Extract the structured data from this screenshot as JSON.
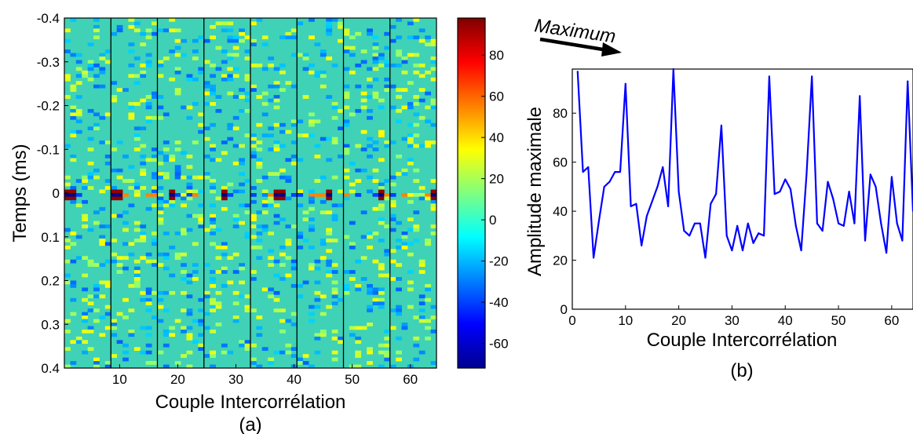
{
  "chart_data": [
    {
      "type": "heatmap",
      "panel_caption": "(a)",
      "xlabel": "Couple Intercorrélation",
      "ylabel": "Temps (ms)",
      "xlim": [
        0.5,
        64.5
      ],
      "ylim": [
        -0.4,
        0.4
      ],
      "y_reversed": true,
      "x_ticks": [
        10,
        20,
        30,
        40,
        50,
        60
      ],
      "x_tick_labels": [
        "10",
        "20",
        "30",
        "40",
        "50",
        "60"
      ],
      "y_ticks": [
        -0.4,
        -0.3,
        -0.2,
        -0.1,
        0,
        0.1,
        0.2,
        0.3,
        0.4
      ],
      "y_tick_labels": [
        "-0.4",
        "-0.3",
        "-0.2",
        "-0.1",
        "0",
        "0.1",
        "0.2",
        "0.3",
        "0.4"
      ],
      "group_separators_x": [
        8.5,
        16.5,
        24.5,
        32.5,
        40.5,
        48.5,
        56.5
      ],
      "colormap": "jet",
      "color_range": [
        -72,
        98
      ],
      "colorbar_ticks": [
        80,
        60,
        40,
        20,
        0,
        -20,
        -40,
        -60
      ],
      "colorbar_tick_labels": [
        "80",
        "60",
        "40",
        "20",
        "0",
        "-20",
        "-40",
        "-60"
      ],
      "n_couples": 64,
      "n_lags": 100,
      "peak_lag_ms": 0,
      "peak_couples": [
        1,
        2,
        9,
        10,
        19,
        28,
        37,
        38,
        46,
        55,
        64
      ]
    },
    {
      "type": "line",
      "panel_caption": "(b)",
      "annotation": "Maximum",
      "xlabel": "Couple Intercorrélation",
      "ylabel": "Amplitude maximale",
      "xlim": [
        0,
        64
      ],
      "ylim": [
        0,
        98
      ],
      "x_ticks": [
        0,
        10,
        20,
        30,
        40,
        50,
        60
      ],
      "x_tick_labels": [
        "0",
        "10",
        "20",
        "30",
        "40",
        "50",
        "60"
      ],
      "y_ticks": [
        0,
        20,
        40,
        60,
        80
      ],
      "y_tick_labels": [
        "0",
        "20",
        "40",
        "60",
        "80"
      ],
      "color": "#0000ff",
      "series": [
        {
          "x": [
            1,
            2,
            3,
            4,
            5,
            6,
            7,
            8,
            9,
            10,
            11,
            12,
            13,
            14,
            15,
            16,
            17,
            18,
            19,
            20,
            21,
            22,
            23,
            24,
            25,
            26,
            27,
            28,
            29,
            30,
            31,
            32,
            33,
            34,
            35,
            36,
            37,
            38,
            39,
            40,
            41,
            42,
            43,
            44,
            45,
            46,
            47,
            48,
            49,
            50,
            51,
            52,
            53,
            54,
            55,
            56,
            57,
            58,
            59,
            60,
            61,
            62,
            63,
            64
          ],
          "values": [
            97,
            56,
            58,
            21,
            36,
            50,
            52,
            56,
            56,
            92,
            42,
            43,
            26,
            38,
            44,
            50,
            58,
            42,
            98,
            48,
            32,
            30,
            35,
            35,
            21,
            43,
            47,
            75,
            30,
            24,
            34,
            24,
            35,
            27,
            31,
            30,
            95,
            47,
            48,
            53,
            49,
            34,
            24,
            55,
            95,
            35,
            32,
            52,
            45,
            35,
            34,
            48,
            35,
            87,
            28,
            55,
            50,
            35,
            23,
            54,
            35,
            28,
            93,
            40
          ]
        }
      ]
    }
  ],
  "colors": {
    "line": "#0000ff",
    "heatmap_background": "#3fd2b6",
    "separator": "#000000"
  }
}
